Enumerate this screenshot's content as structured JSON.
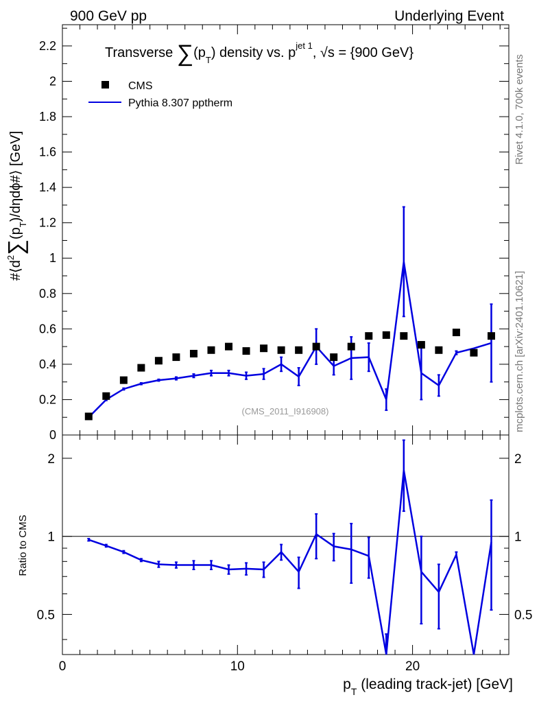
{
  "header": {
    "left": "900 GeV pp",
    "right": "Underlying Event"
  },
  "side_labels": {
    "rivet": "Rivet 4.1.0,  700k events",
    "mcplots": "mcplots.cern.ch [arXiv:2401.10621]"
  },
  "colors": {
    "data": "#000000",
    "mc": "#0000e0",
    "axis": "#000000"
  },
  "chart_data": [
    {
      "type": "scatter",
      "title": "Transverse ∑(pT) density vs. pT jet 1, √s = {900 GeV}",
      "title_parts": {
        "prefix": "Transverse ",
        "sum": "∑",
        "p_open": "(p",
        "sub_T": "T",
        "mid": ") density vs. p",
        "sup_jet": "jet 1",
        "suffix": ", √s = {900 GeV}"
      },
      "ylabel": "#⟨d²∑(pT)/dηdϕ#⟩ [GeV]",
      "ylabel_parts": {
        "a": "#⟨d",
        "sup2": "2",
        "sum": "∑",
        "b": "(p",
        "sub": "T",
        "c": ")/dηdϕ#⟩ [GeV]"
      },
      "xlim": [
        0,
        25.5
      ],
      "ylim": [
        0,
        2.32
      ],
      "yticks": [
        0,
        0.2,
        0.4,
        0.6,
        0.8,
        1,
        1.2,
        1.4,
        1.6,
        1.8,
        2,
        2.2
      ],
      "ytick_labels": [
        "0",
        "0.2",
        "0.4",
        "0.6",
        "0.8",
        "1",
        "1.2",
        "1.4",
        "1.6",
        "1.8",
        "2",
        "2.2"
      ],
      "legend_position": "top-left",
      "annotation": "(CMS_2011_I916908)",
      "x": [
        1.5,
        2.5,
        3.5,
        4.5,
        5.5,
        6.5,
        7.5,
        8.5,
        9.5,
        10.5,
        11.5,
        12.5,
        13.5,
        14.5,
        15.5,
        16.5,
        17.5,
        18.5,
        19.5,
        20.5,
        21.5,
        22.5,
        23.5,
        24.5
      ],
      "series": [
        {
          "name": "CMS",
          "style": "markers",
          "values": [
            0.105,
            0.22,
            0.31,
            0.38,
            0.42,
            0.44,
            0.46,
            0.48,
            0.5,
            0.475,
            0.49,
            0.48,
            0.48,
            0.5,
            0.44,
            0.5,
            0.56,
            0.565,
            0.56,
            0.51,
            0.48,
            0.58,
            0.465,
            0.56
          ]
        },
        {
          "name": "Pythia 8.307 pptherm",
          "style": "line",
          "values": [
            0.1,
            0.2,
            0.26,
            0.29,
            0.31,
            0.32,
            0.335,
            0.35,
            0.35,
            0.335,
            0.345,
            0.4,
            0.33,
            0.5,
            0.39,
            0.435,
            0.44,
            0.2,
            0.98,
            0.35,
            0.28,
            0.465,
            0.49,
            0.52
          ],
          "errors": [
            0.005,
            0.005,
            0.005,
            0.005,
            0.005,
            0.008,
            0.01,
            0.015,
            0.015,
            0.02,
            0.03,
            0.04,
            0.05,
            0.1,
            0.05,
            0.12,
            0.08,
            0.06,
            0.31,
            0.15,
            0.06,
            0.01,
            0.0,
            0.22
          ]
        }
      ]
    },
    {
      "type": "line",
      "ylabel": "Ratio to CMS",
      "xlabel": "pT (leading track-jet) [GeV]",
      "xlabel_parts": {
        "p": "p",
        "sub": "T",
        "rest": " (leading track-jet) [GeV]"
      },
      "xlim": [
        0,
        25.5
      ],
      "ylim": [
        0.35,
        2.3
      ],
      "xticks": [
        0,
        10,
        20
      ],
      "xtick_labels": [
        "0",
        "10",
        "20"
      ],
      "yticks": [
        0.5,
        1,
        2
      ],
      "ytick_labels": [
        "0.5",
        "1",
        "2"
      ],
      "reference_line": 1,
      "x": [
        1.5,
        2.5,
        3.5,
        4.5,
        5.5,
        6.5,
        7.5,
        8.5,
        9.5,
        10.5,
        11.5,
        12.5,
        13.5,
        14.5,
        15.5,
        16.5,
        17.5,
        18.5,
        19.5,
        20.5,
        21.5,
        22.5,
        23.5,
        24.5
      ],
      "series": [
        {
          "name": "Pythia 8.307 pptherm / CMS",
          "values": [
            0.97,
            0.92,
            0.87,
            0.81,
            0.78,
            0.775,
            0.775,
            0.775,
            0.745,
            0.75,
            0.745,
            0.87,
            0.73,
            1.02,
            0.915,
            0.89,
            0.84,
            0.3,
            1.8,
            0.73,
            0.61,
            0.85,
            0.3,
            0.95
          ],
          "errors": [
            0.01,
            0.01,
            0.01,
            0.01,
            0.02,
            0.02,
            0.03,
            0.03,
            0.03,
            0.04,
            0.05,
            0.06,
            0.1,
            0.2,
            0.11,
            0.23,
            0.15,
            0.12,
            0.55,
            0.27,
            0.17,
            0.02,
            0.0,
            0.43
          ]
        }
      ]
    }
  ]
}
